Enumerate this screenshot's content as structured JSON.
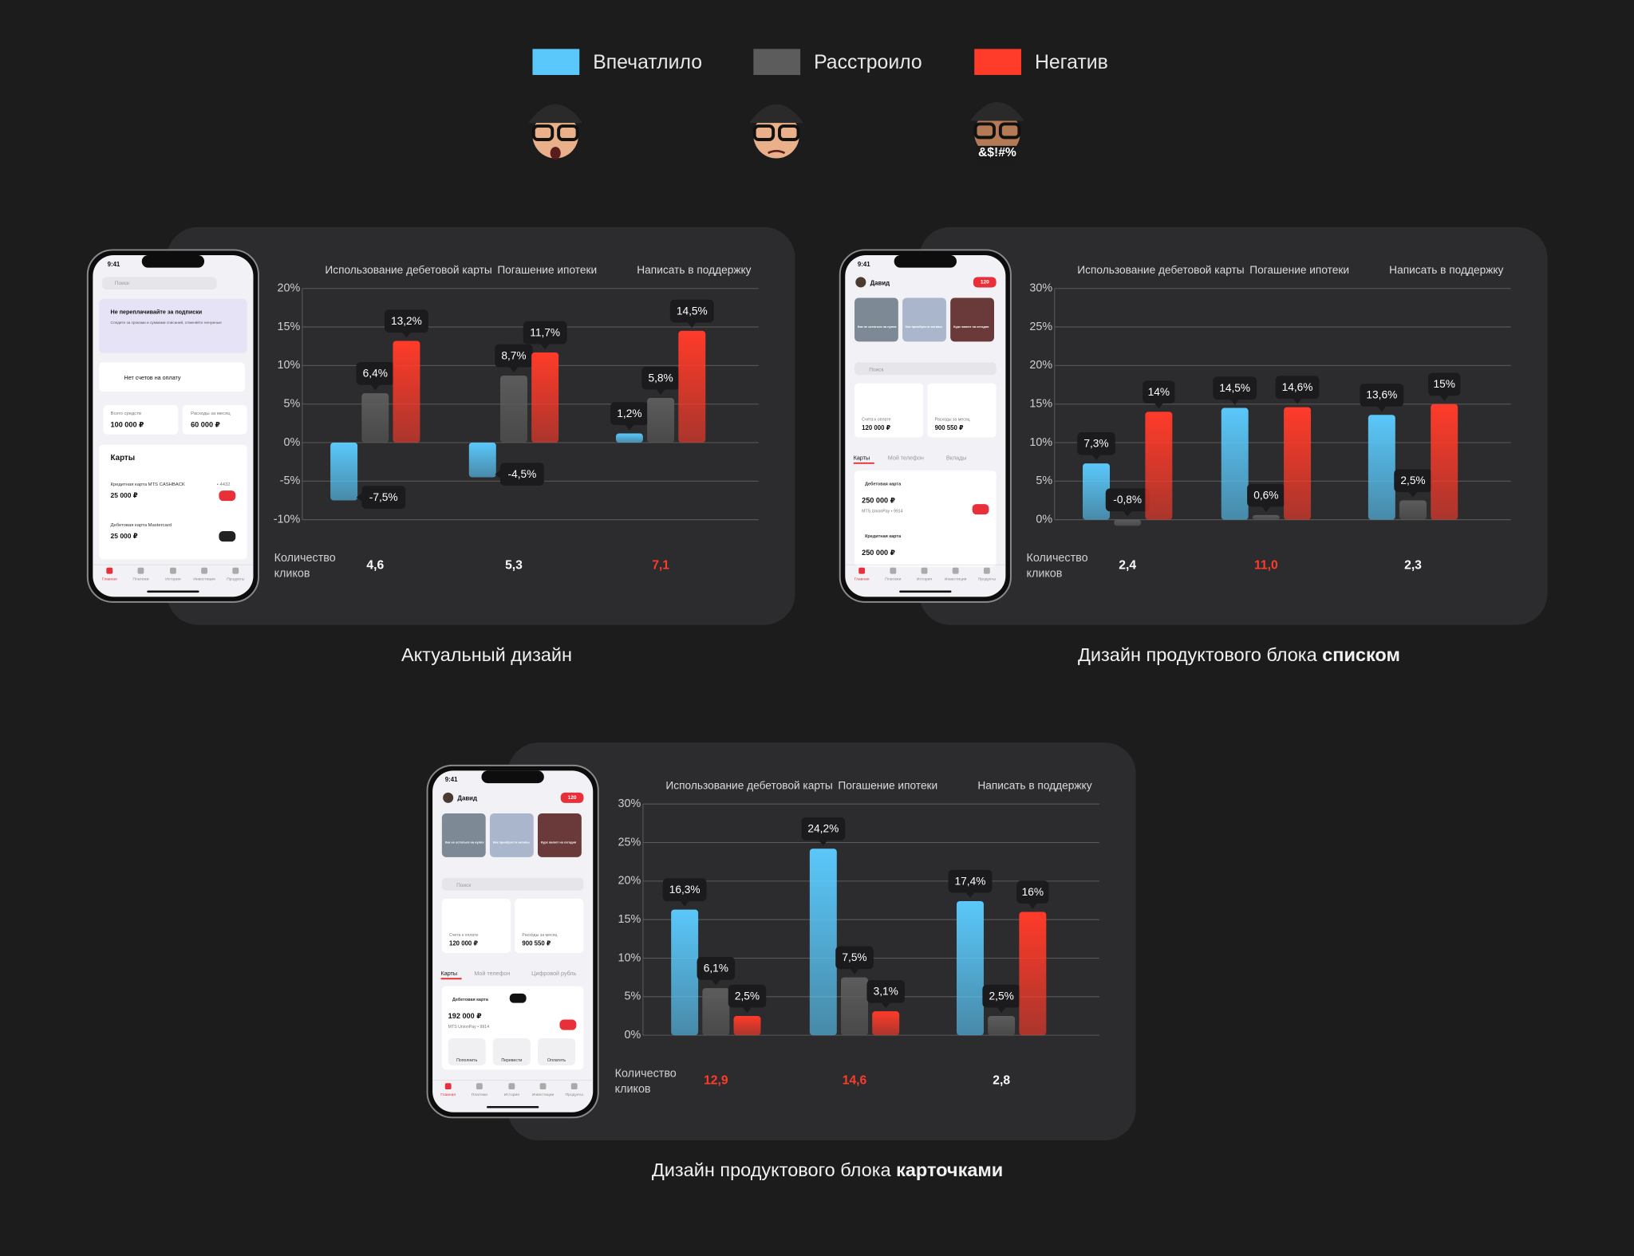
{
  "legend_emoji_text": "&$!#%",
  "phone_nav": [
    "Главная",
    "Платежи",
    "История",
    "Инвестиции",
    "Продукты"
  ],
  "chart_data": [
    {
      "type": "bar",
      "caption": "Актуальный дизайн",
      "categories": [
        "Использование дебетовой карты",
        "Погашение ипотеки",
        "Написать в поддержку"
      ],
      "series": [
        {
          "name": "Впечатлило",
          "color": "#5ac8fa",
          "values": [
            -7.5,
            -4.5,
            1.2
          ],
          "value_labels": [
            "-7,5%",
            "-4,5%",
            "1,2%"
          ]
        },
        {
          "name": "Расстроило",
          "color": "#5c5c5c",
          "values": [
            6.4,
            8.7,
            5.8
          ],
          "value_labels": [
            "6,4%",
            "8,7%",
            "5,8%"
          ]
        },
        {
          "name": "Негатив",
          "color": "#ff3b2a",
          "values": [
            13.2,
            11.7,
            14.5
          ],
          "value_labels": [
            "13,2%",
            "11,7%",
            "14,5%"
          ]
        }
      ],
      "ylim": [
        -10,
        20
      ],
      "yticks": [
        {
          "value": -10,
          "label": "-10%"
        },
        {
          "value": -5,
          "label": "-5%"
        },
        {
          "value": 0,
          "label": "0%"
        },
        {
          "value": 5,
          "label": "5%"
        },
        {
          "value": 10,
          "label": "10%"
        },
        {
          "value": 15,
          "label": "15%"
        },
        {
          "value": 20,
          "label": "20%"
        }
      ],
      "grid": true,
      "clicks_label": "Количество кликов",
      "clicks": [
        4.6,
        5.3,
        7.1
      ],
      "clicks_labels": [
        "4,6",
        "5,3",
        "7,1"
      ],
      "clicks_highlight": [
        false,
        false,
        true
      ],
      "phone": {
        "texts": [
          "9:41",
          "Поиск",
          "Не переплачивайте за подписки",
          "Следите за сроками и суммами списаний, отменяйте ненужные",
          "Нет счетов на оплату",
          "Всего средств",
          "100 000 ₽",
          "Расходы за месяц",
          "60 000 ₽",
          "Карты",
          "Кредитная карта MTS CASHBACK",
          "• 4432",
          "25 000 ₽",
          "Дебетовая карта Mastercard",
          "25 000 ₽"
        ]
      }
    },
    {
      "type": "bar",
      "caption": "Дизайн продуктового блока",
      "caption_bold": "списком",
      "categories": [
        "Использование дебетовой карты",
        "Погашение ипотеки",
        "Написать в поддержку"
      ],
      "series": [
        {
          "name": "Впечатлило",
          "color": "#5ac8fa",
          "values": [
            7.3,
            14.5,
            13.6
          ],
          "value_labels": [
            "7,3%",
            "14,5%",
            "13,6%"
          ]
        },
        {
          "name": "Расстроило",
          "color": "#5c5c5c",
          "values": [
            -0.8,
            0.6,
            2.5
          ],
          "value_labels": [
            "-0,8%",
            "0,6%",
            "2,5%"
          ]
        },
        {
          "name": "Негатив",
          "color": "#ff3b2a",
          "values": [
            14,
            14.6,
            15
          ],
          "value_labels": [
            "14%",
            "14,6%",
            "15%"
          ]
        }
      ],
      "ylim": [
        0,
        30
      ],
      "yticks": [
        {
          "value": 0,
          "label": "0%"
        },
        {
          "value": 5,
          "label": "5%"
        },
        {
          "value": 10,
          "label": "10%"
        },
        {
          "value": 15,
          "label": "15%"
        },
        {
          "value": 20,
          "label": "20%"
        },
        {
          "value": 25,
          "label": "25%"
        },
        {
          "value": 30,
          "label": "30%"
        }
      ],
      "grid": true,
      "clicks_label": "Количество кликов",
      "clicks": [
        2.4,
        11.0,
        2.3
      ],
      "clicks_labels": [
        "2,4",
        "11,0",
        "2,3"
      ],
      "clicks_highlight": [
        false,
        true,
        false
      ],
      "phone": {
        "texts": [
          "9:41",
          "Давид",
          "120",
          "Как не остаться на нулях",
          "Как приобрести активы",
          "Курс валют на сегодня",
          "Поиск",
          "Счета к оплате",
          "120 000 ₽",
          "Расходы за месяц",
          "900 550 ₽",
          "Карты",
          "Мой телефон",
          "Вклады",
          "Дебетовая карта",
          "250 000 ₽",
          "MTS UnionPay • 9914",
          "Кредитная карта",
          "250 000 ₽"
        ]
      }
    },
    {
      "type": "bar",
      "caption": "Дизайн продуктового блока",
      "caption_bold": "карточками",
      "categories": [
        "Использование дебетовой карты",
        "Погашение ипотеки",
        "Написать в поддержку"
      ],
      "series": [
        {
          "name": "Впечатлило",
          "color": "#5ac8fa",
          "values": [
            16.3,
            24.2,
            17.4
          ],
          "value_labels": [
            "16,3%",
            "24,2%",
            "17,4%"
          ]
        },
        {
          "name": "Расстроило",
          "color": "#5c5c5c",
          "values": [
            6.1,
            7.5,
            2.5
          ],
          "value_labels": [
            "6,1%",
            "7,5%",
            "2,5%"
          ]
        },
        {
          "name": "Негатив",
          "color": "#ff3b2a",
          "values": [
            2.5,
            3.1,
            16
          ],
          "value_labels": [
            "2,5%",
            "3,1%",
            "16%"
          ]
        }
      ],
      "ylim": [
        0,
        30
      ],
      "yticks": [
        {
          "value": 0,
          "label": "0%"
        },
        {
          "value": 5,
          "label": "5%"
        },
        {
          "value": 10,
          "label": "10%"
        },
        {
          "value": 15,
          "label": "15%"
        },
        {
          "value": 20,
          "label": "20%"
        },
        {
          "value": 25,
          "label": "25%"
        },
        {
          "value": 30,
          "label": "30%"
        }
      ],
      "grid": true,
      "clicks_label": "Количество кликов",
      "clicks": [
        12.9,
        14.6,
        2.8
      ],
      "clicks_labels": [
        "12,9",
        "14,6",
        "2,8"
      ],
      "clicks_highlight": [
        true,
        true,
        false
      ],
      "phone": {
        "texts": [
          "9:41",
          "Давид",
          "120",
          "Как не остаться на нулях",
          "Как приобрести активы",
          "Курс валют на сегодня",
          "Поиск",
          "Счета к оплате",
          "120 000 ₽",
          "Расходы за месяц",
          "900 550 ₽",
          "Карты",
          "Мой телефон",
          "Цифровой рубль",
          "Дебетовая карта",
          "192 000 ₽",
          "MTS UnionPay • 9914",
          "Пополнить",
          "Перевести",
          "Оплатить"
        ]
      }
    }
  ]
}
